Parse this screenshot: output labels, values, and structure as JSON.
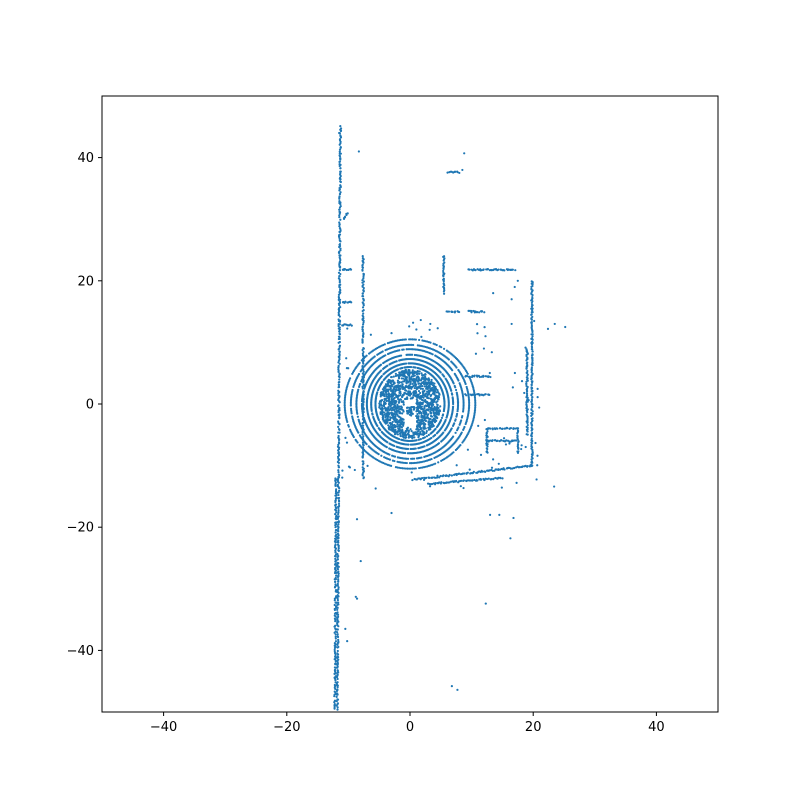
{
  "chart_data": {
    "type": "scatter",
    "title": "",
    "xlabel": "",
    "ylabel": "",
    "xlim": [
      -50,
      50
    ],
    "ylim": [
      -50,
      50
    ],
    "grid": false,
    "legend": "none",
    "xticks": [
      -40,
      -20,
      0,
      20,
      40
    ],
    "yticks": [
      -40,
      -20,
      0,
      20,
      40
    ],
    "xtick_labels": [
      "−40",
      "−20",
      "0",
      "20",
      "40"
    ],
    "ytick_labels": [
      "−40",
      "−20",
      "0",
      "20",
      "40"
    ],
    "marker_color": "#1f77b4",
    "structure": {
      "rings": [
        {
          "cx": 0,
          "cy": 0,
          "rx": 5.6,
          "ry": 6.0
        },
        {
          "cx": 0,
          "cy": 0,
          "rx": 6.3,
          "ry": 6.6
        },
        {
          "cx": 0,
          "cy": 0,
          "rx": 7.0,
          "ry": 7.3
        },
        {
          "cx": 0,
          "cy": 0,
          "rx": 7.8,
          "ry": 8.0
        },
        {
          "cx": 0,
          "cy": 0,
          "rx": 8.7,
          "ry": 8.9
        },
        {
          "cx": 0,
          "cy": 0,
          "rx": 9.6,
          "ry": 9.6
        },
        {
          "cx": 0,
          "cy": 0,
          "rx": 10.6,
          "ry": 10.5
        }
      ],
      "segments": [
        {
          "x1": -11.8,
          "y1": -49.5,
          "x2": -11.3,
          "y2": 45
        },
        {
          "x1": -12.2,
          "y1": -49.5,
          "x2": -12.0,
          "y2": -12
        },
        {
          "x1": -7.6,
          "y1": -12,
          "x2": -7.6,
          "y2": 24
        },
        {
          "x1": 19.8,
          "y1": -10,
          "x2": 19.8,
          "y2": 20
        },
        {
          "x1": 19.0,
          "y1": -5,
          "x2": 19.0,
          "y2": 9
        },
        {
          "x1": 0.5,
          "y1": -12.3,
          "x2": 19.8,
          "y2": -10
        },
        {
          "x1": 3,
          "y1": -13,
          "x2": 15,
          "y2": -12
        },
        {
          "x1": 12.5,
          "y1": -4,
          "x2": 17.5,
          "y2": -4
        },
        {
          "x1": 12.5,
          "y1": -6,
          "x2": 17.5,
          "y2": -6
        },
        {
          "x1": 12.5,
          "y1": -4,
          "x2": 12.5,
          "y2": -8
        },
        {
          "x1": 17.5,
          "y1": -4,
          "x2": 17.5,
          "y2": -8
        },
        {
          "x1": 9.5,
          "y1": 21.8,
          "x2": 17,
          "y2": 21.8
        },
        {
          "x1": 9.5,
          "y1": 15,
          "x2": 12,
          "y2": 15
        },
        {
          "x1": 6,
          "y1": 15,
          "x2": 8,
          "y2": 15
        },
        {
          "x1": 9,
          "y1": 4.5,
          "x2": 13,
          "y2": 4.5
        },
        {
          "x1": 9,
          "y1": 1.5,
          "x2": 13,
          "y2": 1.5
        },
        {
          "x1": 5.5,
          "y1": 18,
          "x2": 5.5,
          "y2": 24
        },
        {
          "x1": 6.2,
          "y1": 37.6,
          "x2": 8.0,
          "y2": 37.6
        },
        {
          "x1": -10.8,
          "y1": 30,
          "x2": -10.2,
          "y2": 31
        },
        {
          "x1": -11,
          "y1": 21.8,
          "x2": -9.5,
          "y2": 21.8
        },
        {
          "x1": -11,
          "y1": 16.5,
          "x2": -9.5,
          "y2": 16.5
        },
        {
          "x1": -11,
          "y1": 12.8,
          "x2": -9.5,
          "y2": 12.8
        }
      ],
      "points": [
        [
          -8.3,
          41
        ],
        [
          -11.5,
          44
        ],
        [
          8.8,
          40.7
        ],
        [
          7,
          37.6
        ],
        [
          8.5,
          38
        ],
        [
          25.2,
          12.5
        ],
        [
          23.5,
          13
        ],
        [
          22.4,
          12.2
        ],
        [
          23.4,
          -13.4
        ],
        [
          12.3,
          -32.4
        ],
        [
          16.3,
          -21.8
        ],
        [
          13,
          -18
        ],
        [
          14.5,
          -18
        ],
        [
          16.8,
          -18.5
        ],
        [
          6.8,
          -45.8
        ],
        [
          7.7,
          -46.4
        ],
        [
          -3,
          -17.7
        ],
        [
          -8.8,
          -31.3
        ],
        [
          -8.6,
          -31.6
        ],
        [
          -8,
          -25.5
        ],
        [
          -10.5,
          -36.5
        ],
        [
          -10.2,
          -38.5
        ],
        [
          -8.6,
          -18.7
        ],
        [
          3.3,
          13
        ],
        [
          0.5,
          13.2
        ],
        [
          -3,
          11.5
        ],
        [
          4.5,
          12.3
        ],
        [
          12,
          9
        ],
        [
          16.5,
          13
        ],
        [
          16.5,
          17
        ],
        [
          13.5,
          18
        ],
        [
          17.5,
          20
        ],
        [
          17,
          19
        ]
      ]
    }
  }
}
